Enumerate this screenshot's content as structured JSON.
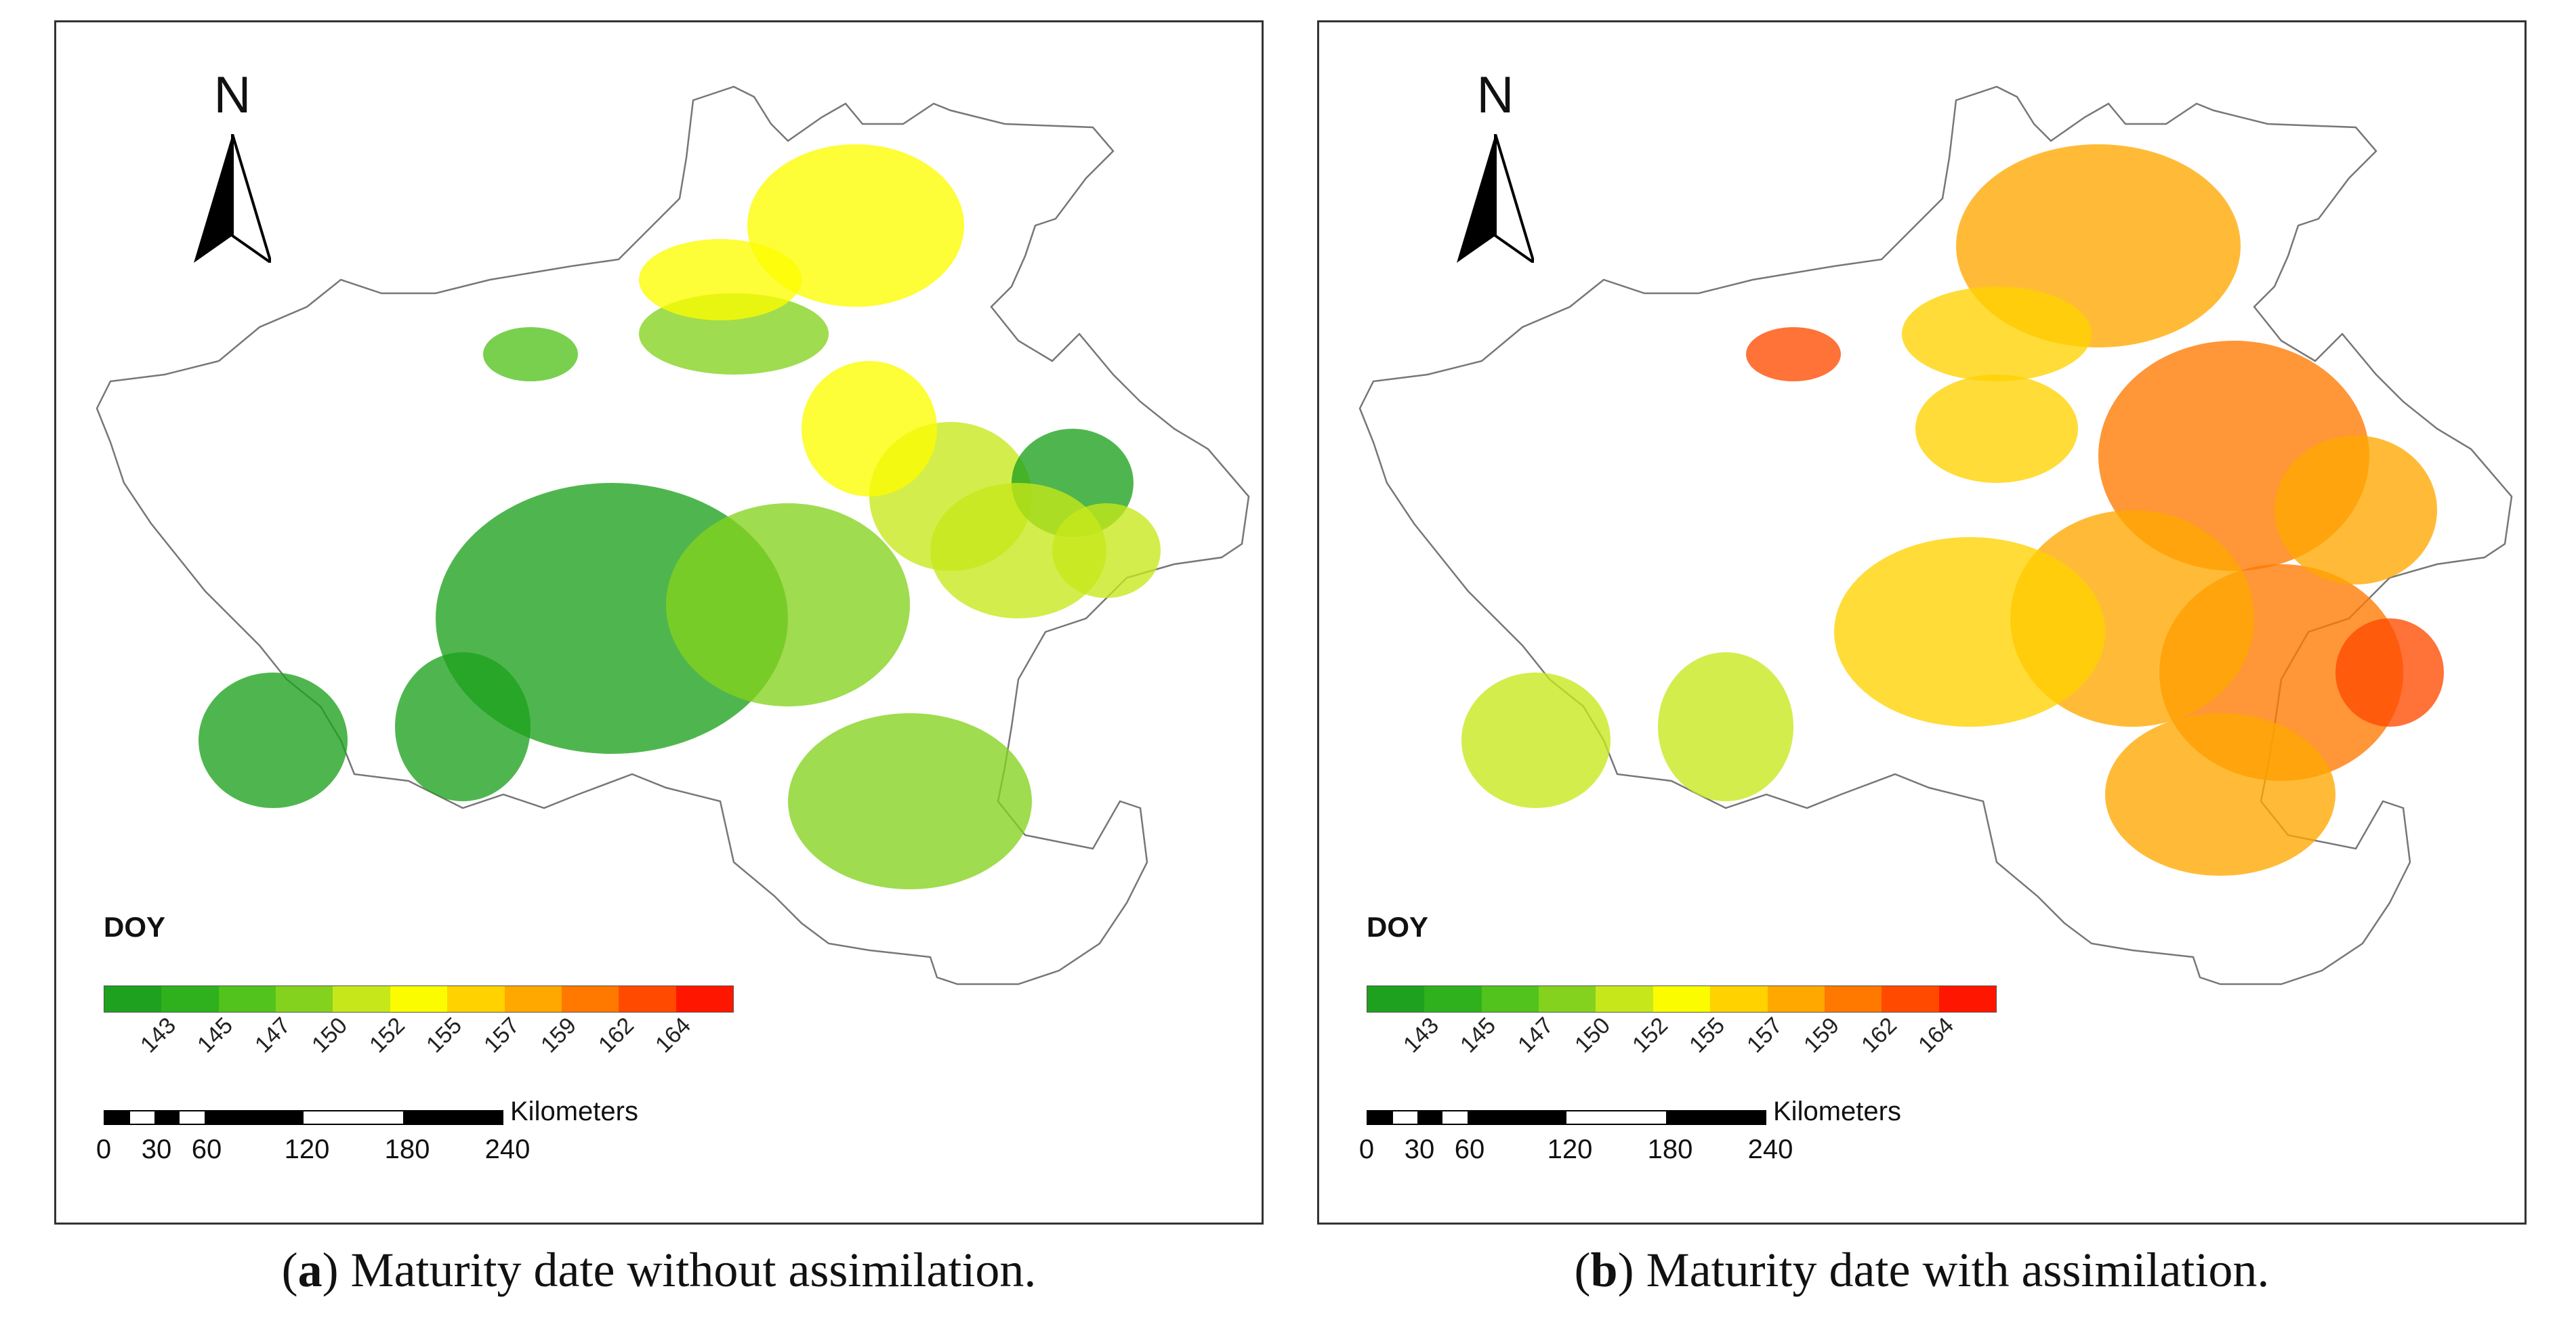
{
  "legend": {
    "title": "DOY",
    "tick_labels": [
      "143",
      "145",
      "147",
      "150",
      "152",
      "155",
      "157",
      "159",
      "162",
      "164"
    ],
    "ramp_colors": [
      "#1ea11e",
      "#2eb11c",
      "#52c31c",
      "#84d21e",
      "#c6e81a",
      "#fcfc00",
      "#ffd200",
      "#ffa800",
      "#ff7800",
      "#ff4a00",
      "#ff1600"
    ]
  },
  "north_arrow": {
    "label": "N"
  },
  "scale_bar": {
    "unit": "Kilometers",
    "ticks": [
      "0",
      "30",
      "60",
      "120",
      "180",
      "240"
    ]
  },
  "panels": [
    {
      "id": "a",
      "caption_letter": "a",
      "caption_text": "Maturity date without assimilation.",
      "dominant_colors": [
        "#1ea11e",
        "#52c31c",
        "#84d21e",
        "#c6e81a",
        "#fcfc00"
      ]
    },
    {
      "id": "b",
      "caption_letter": "b",
      "caption_text": "Maturity date with assimilation.",
      "dominant_colors": [
        "#ffa800",
        "#ff7800",
        "#ff4a00",
        "#ffd200",
        "#c6e81a"
      ]
    }
  ]
}
